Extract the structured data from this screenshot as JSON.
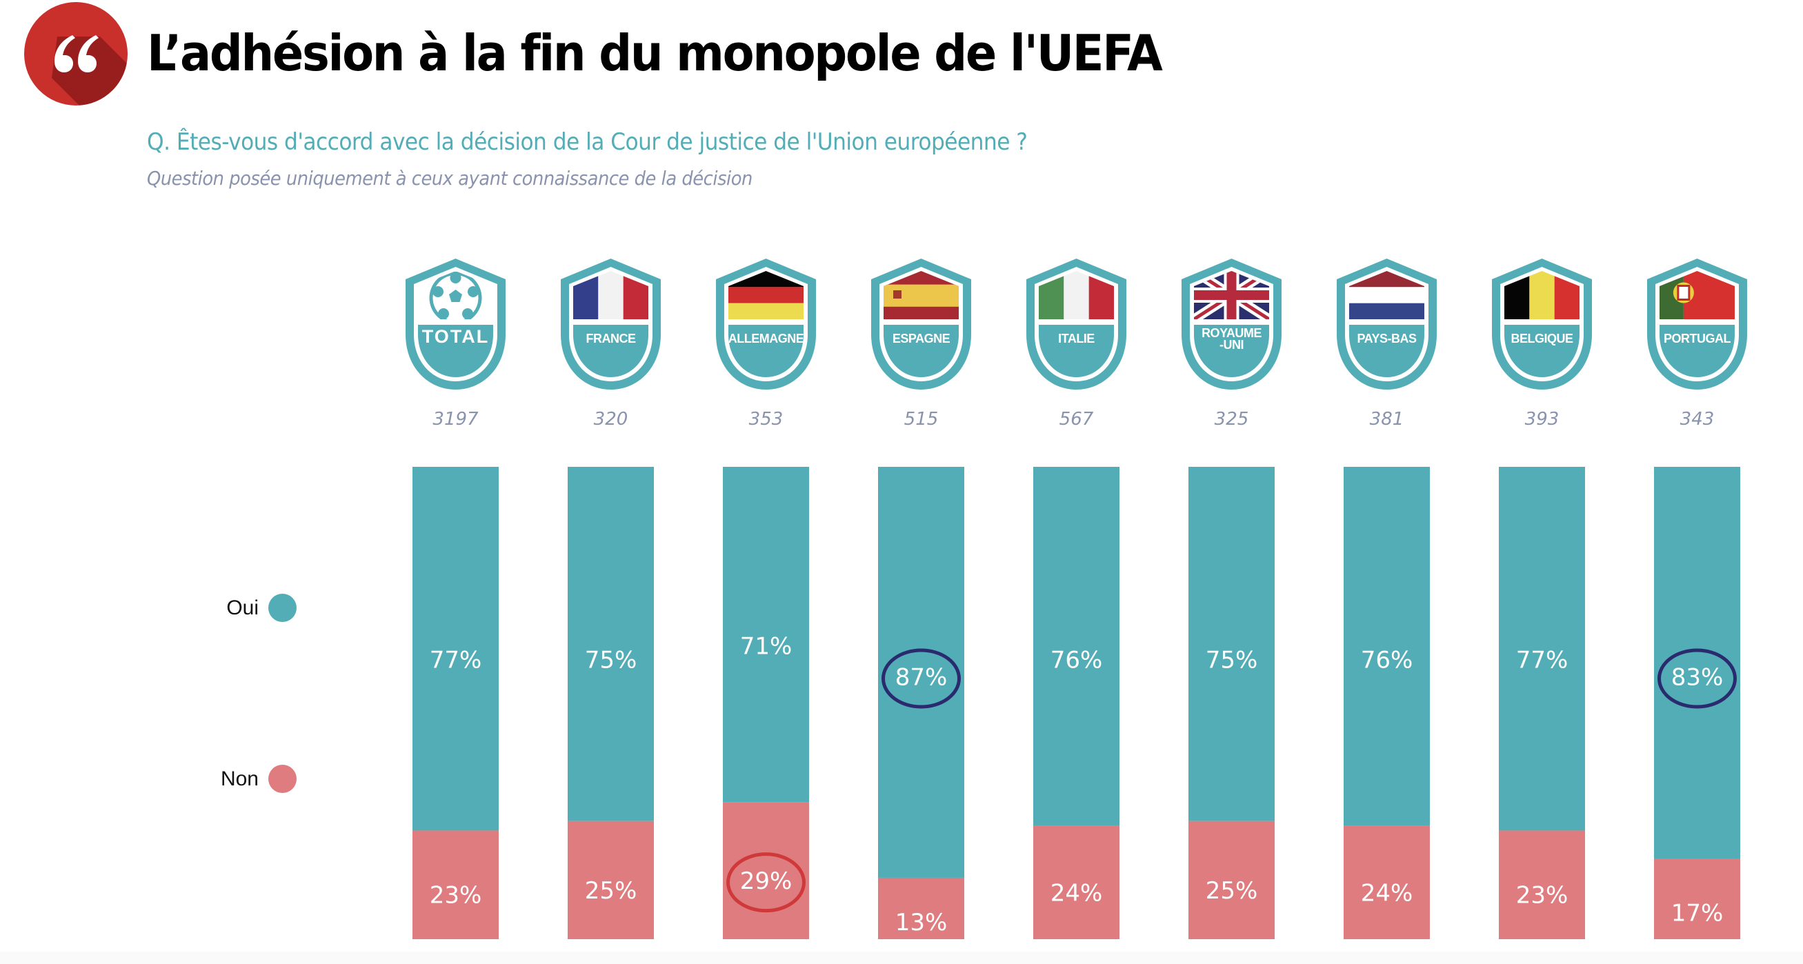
{
  "header": {
    "title": "L’adhésion à la fin du monopole de l'UEFA",
    "logo_icon": "quote-icon",
    "logo_color": "#c9302c",
    "question": "Q. Êtes-vous d'accord avec la décision de la Cour de justice de l'Union européenne ?",
    "note": "Question posée uniquement à ceux ayant connaissance de la décision"
  },
  "legend": [
    {
      "label": "Oui",
      "color": "#53adb6"
    },
    {
      "label": "Non",
      "color": "#de7c7f"
    }
  ],
  "colors": {
    "oui": "#53adb6",
    "non": "#de7c7f",
    "badge": "#52adb6",
    "highlight_blue": "#2a2a6e",
    "highlight_red": "#d0393a",
    "sample_text": "#8a93ad"
  },
  "chart_data": {
    "type": "bar",
    "stacked": true,
    "title": "L’adhésion à la fin du monopole de l'UEFA",
    "subtitle": "Q. Êtes-vous d'accord avec la décision de la Cour de justice de l'Union européenne ?",
    "xlabel": "",
    "ylabel": "",
    "ylim": [
      0,
      100
    ],
    "grid": false,
    "legend_position": "left",
    "categories": [
      "TOTAL",
      "FRANCE",
      "ALLEMAGNE",
      "ESPAGNE",
      "ITALIE",
      "ROYAUME-UNI",
      "PAYS-BAS",
      "BELGIQUE",
      "PORTUGAL"
    ],
    "badge_labels": [
      "TOTAL",
      "FRANCE",
      "ALLEMAGNE",
      "ESPAGNE",
      "ITALIE",
      "ROYAUME\n-UNI",
      "PAYS-BAS",
      "BELGIQUE",
      "PORTUGAL"
    ],
    "badge_flags": [
      "football",
      "france",
      "germany",
      "spain",
      "italy",
      "uk",
      "netherlands",
      "belgium",
      "portugal"
    ],
    "sample_sizes": [
      "3197",
      "320",
      "353",
      "515",
      "567",
      "325",
      "381",
      "393",
      "343"
    ],
    "series": [
      {
        "name": "Oui",
        "values": [
          77,
          75,
          71,
          87,
          76,
          75,
          76,
          77,
          83
        ],
        "labels": [
          "77%",
          "75%",
          "71%",
          "87%",
          "76%",
          "75%",
          "76%",
          "77%",
          "83%"
        ]
      },
      {
        "name": "Non",
        "values": [
          23,
          25,
          29,
          13,
          24,
          25,
          24,
          23,
          17
        ],
        "labels": [
          "23%",
          "25%",
          "29%",
          "13%",
          "24%",
          "25%",
          "24%",
          "23%",
          "17%"
        ]
      }
    ],
    "annotations": [
      {
        "category": "ESPAGNE",
        "series": "Oui",
        "type": "circle",
        "color": "#2a2a6e"
      },
      {
        "category": "PORTUGAL",
        "series": "Oui",
        "type": "circle",
        "color": "#2a2a6e"
      },
      {
        "category": "ALLEMAGNE",
        "series": "Non",
        "type": "circle",
        "color": "#d0393a"
      }
    ]
  }
}
